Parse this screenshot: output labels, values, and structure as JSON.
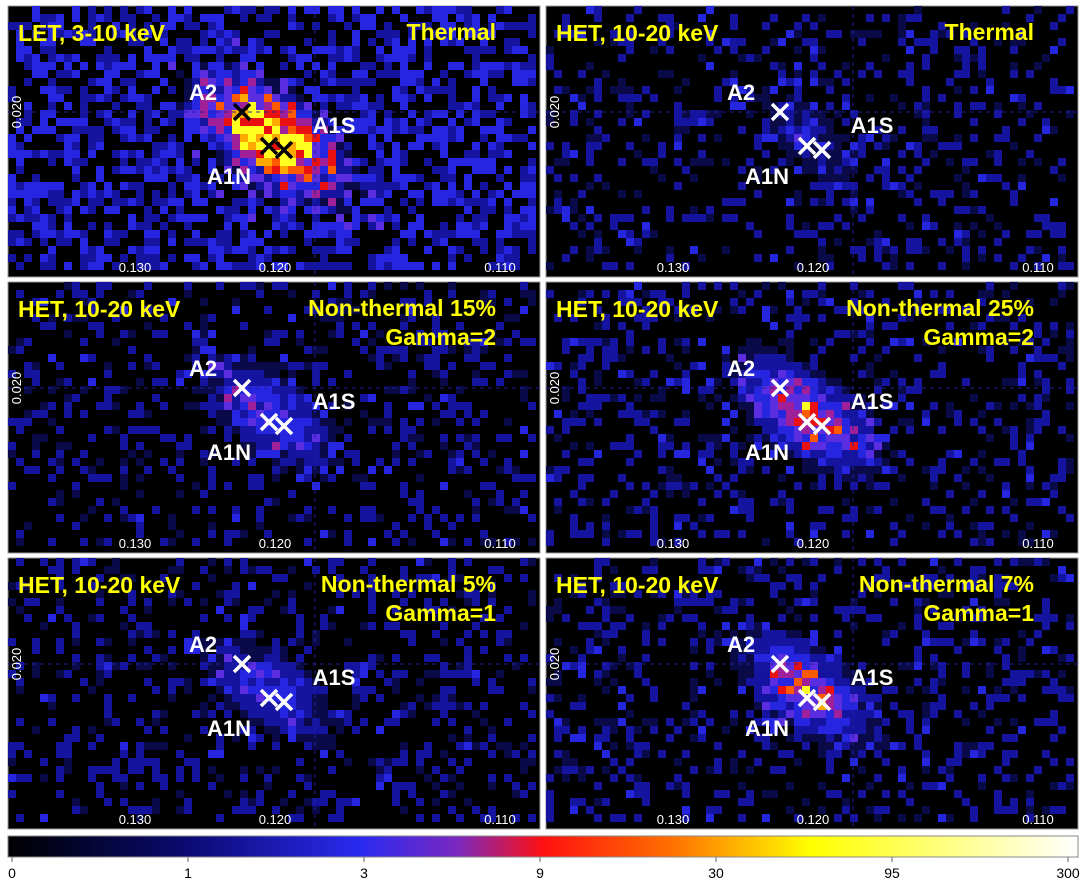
{
  "panels": [
    {
      "band": "LET, 3-10 keV",
      "model": [
        "Thermal"
      ]
    },
    {
      "band": "HET, 10-20 keV",
      "model": [
        "Thermal"
      ]
    },
    {
      "band": "HET, 10-20 keV",
      "model": [
        "Non-thermal 15%",
        "Gamma=2"
      ]
    },
    {
      "band": "HET, 10-20 keV",
      "model": [
        "Non-thermal 25%",
        "Gamma=2"
      ]
    },
    {
      "band": "HET, 10-20 keV",
      "model": [
        "Non-thermal 5%",
        "Gamma=1"
      ]
    },
    {
      "band": "HET, 10-20 keV",
      "model": [
        "Non-thermal 7%",
        "Gamma=1"
      ]
    }
  ],
  "sources": {
    "a2": "A2",
    "a1s": "A1S",
    "a1n": "A1N"
  },
  "axes": {
    "y_tick": "0.020",
    "x_ticks": [
      "0.130",
      "0.120",
      "0.110"
    ]
  },
  "colorbar": {
    "ticks": [
      0,
      1,
      3,
      9,
      30,
      95,
      300
    ]
  }
}
